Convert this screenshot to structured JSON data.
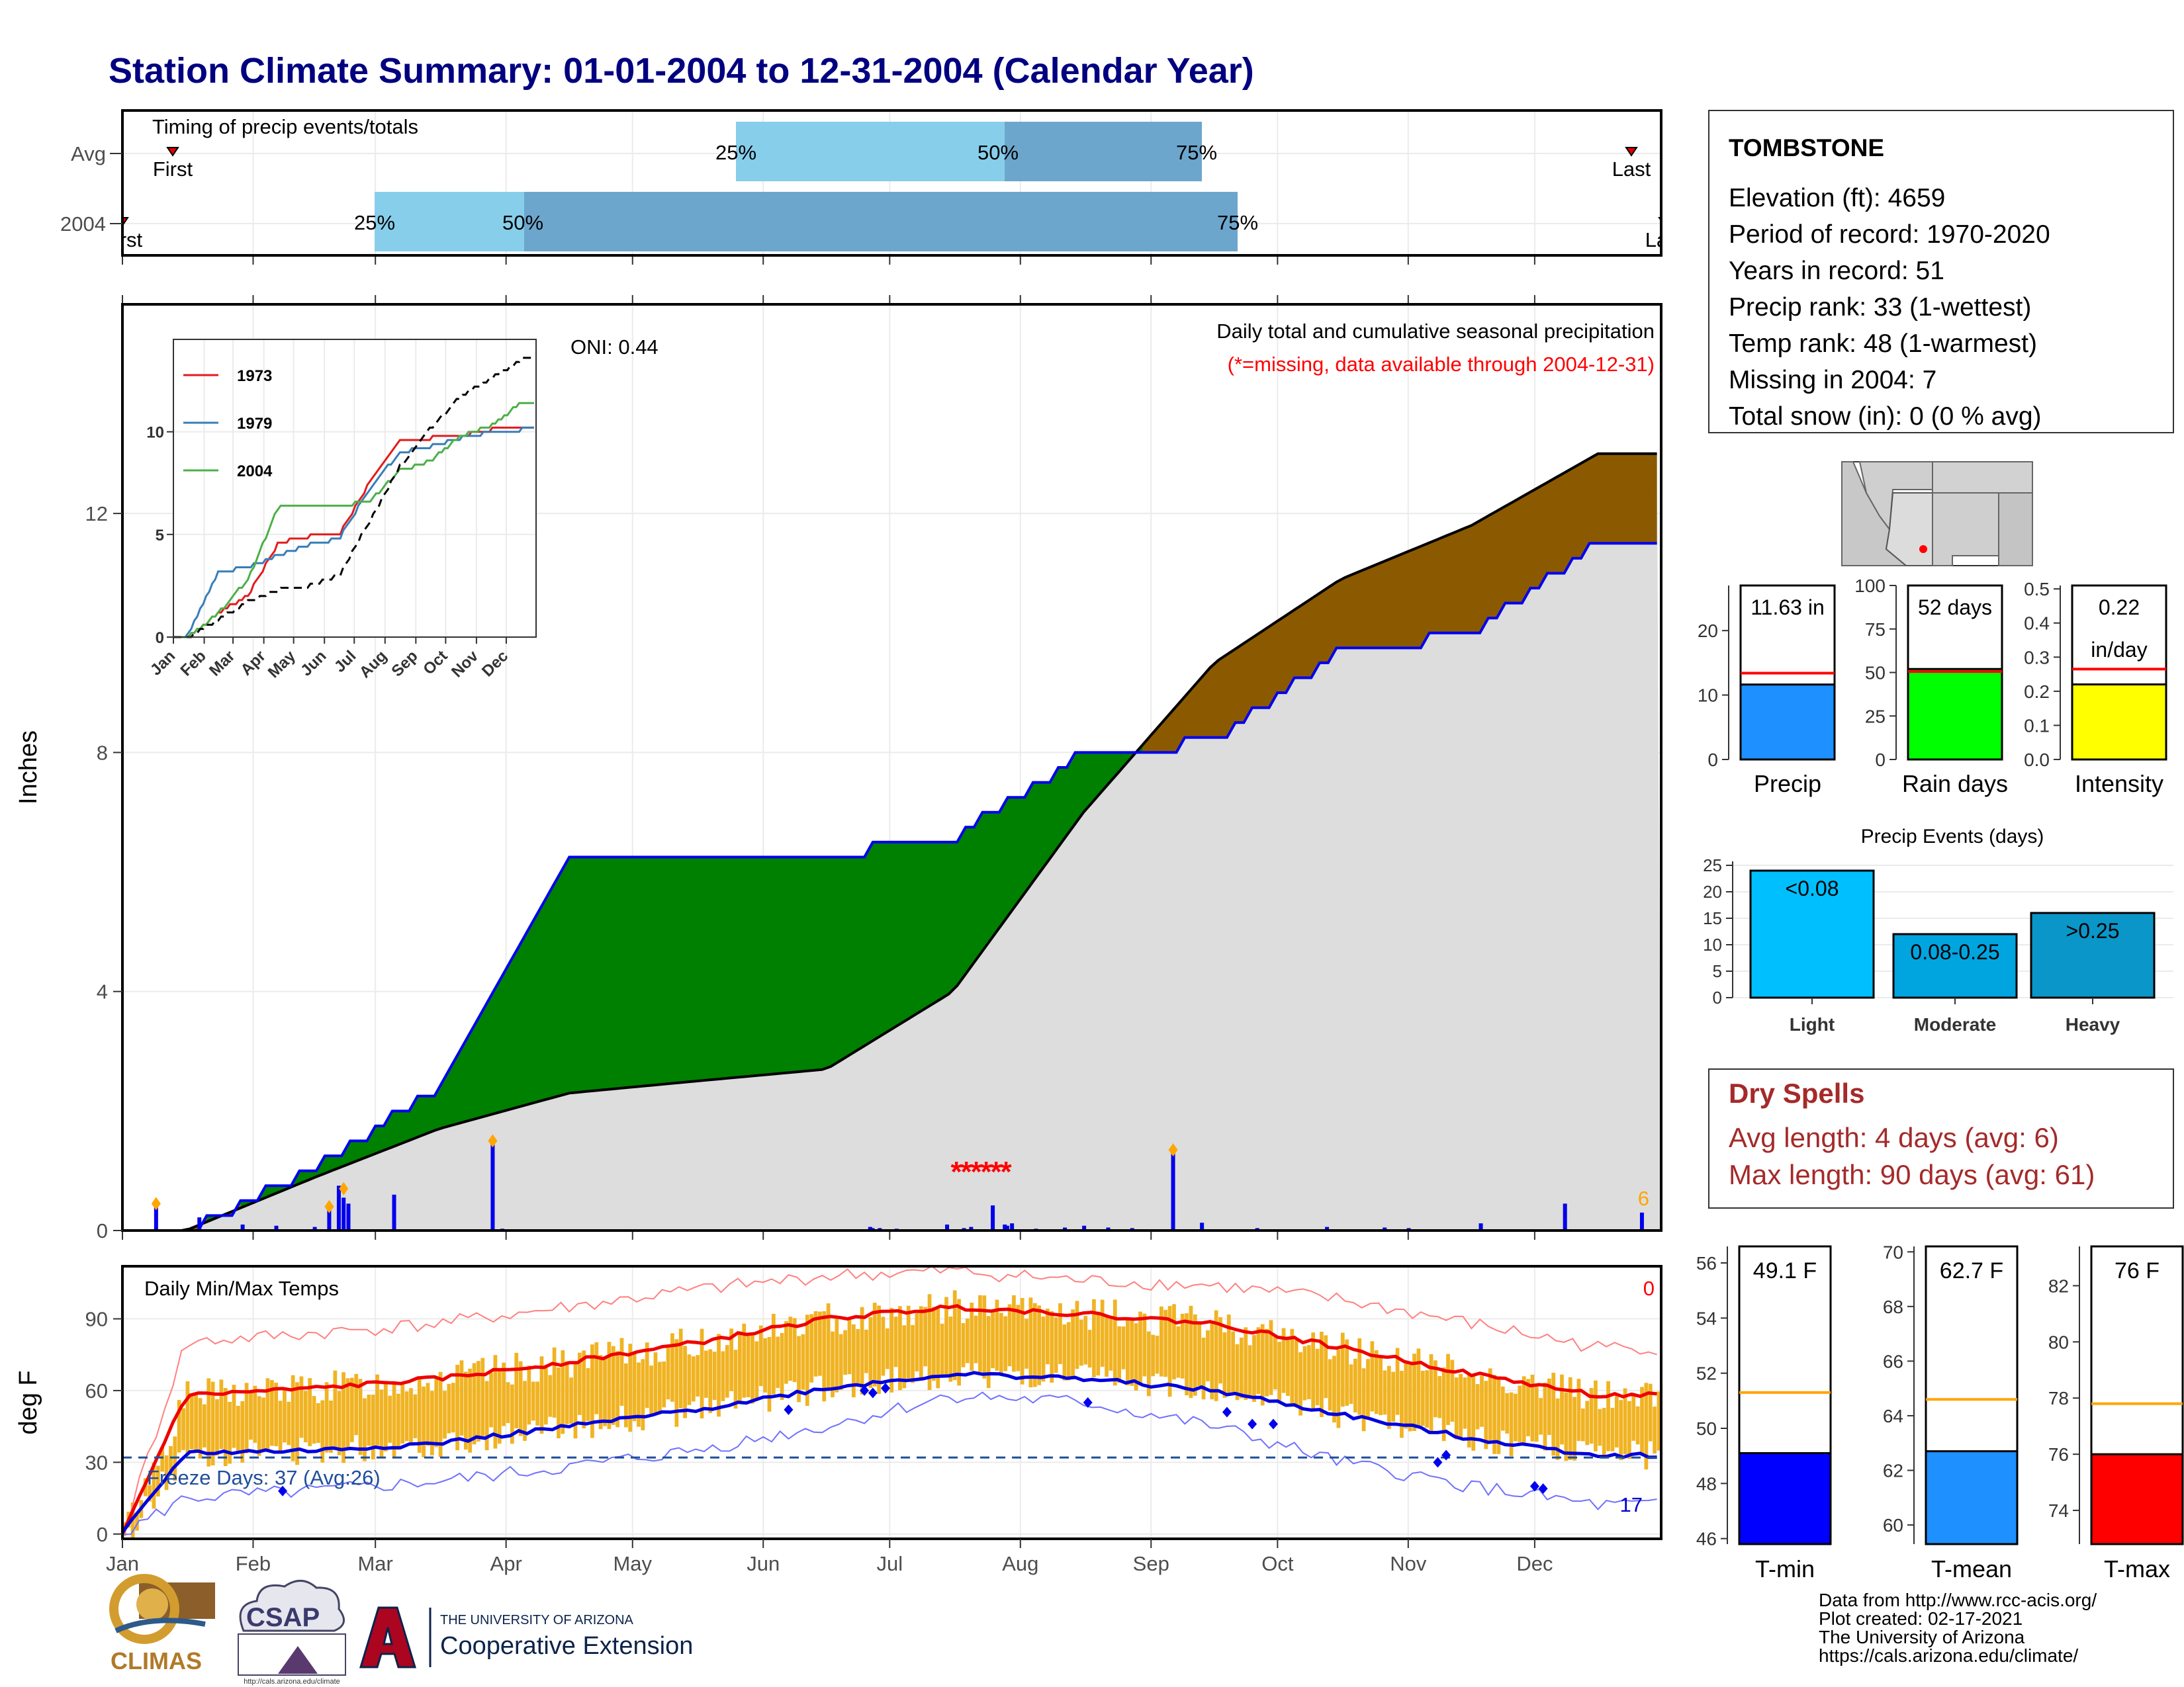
{
  "title": "Station Climate Summary: 01-01-2004 to 12-31-2004 (Calendar Year)",
  "timing": {
    "label": "Timing of precip events/totals",
    "rows": [
      "Avg",
      "2004"
    ],
    "avg": {
      "first": "First",
      "last": "Last",
      "p25": "25%",
      "p50": "50%",
      "p75": "75%"
    },
    "y2004": {
      "first": "First",
      "last": "Last",
      "p25": "25%",
      "p50": "50%",
      "p75": "75%"
    }
  },
  "precip_panel": {
    "ylabel": "Inches",
    "yticks": [
      0,
      4,
      8,
      12
    ],
    "note1": "Daily total and cumulative seasonal precipitation",
    "note2": "(*=missing, data available through 2004-12-31)",
    "oni": "ONI: 0.44",
    "corner_count": "6"
  },
  "inset": {
    "legend": [
      "1973",
      "1979",
      "2004"
    ],
    "yticks": [
      0,
      5,
      10
    ],
    "months": [
      "Jan",
      "Feb",
      "Mar",
      "Apr",
      "May",
      "Jun",
      "Jul",
      "Aug",
      "Sep",
      "Oct",
      "Nov",
      "Dec"
    ]
  },
  "temp_panel": {
    "label": "Daily Min/Max Temps",
    "ylabel": "deg F",
    "yticks": [
      0,
      30,
      60,
      90
    ],
    "freeze": "Freeze Days: 37 (Avg:26)",
    "count_top": "0",
    "count_bottom": "17",
    "months": [
      "Jan",
      "Feb",
      "Mar",
      "Apr",
      "May",
      "Jun",
      "Jul",
      "Aug",
      "Sep",
      "Oct",
      "Nov",
      "Dec"
    ]
  },
  "station": {
    "name": "TOMBSTONE",
    "lines": [
      "Elevation (ft): 4659",
      "Period of record: 1970-2020",
      "Years in record: 51",
      "Precip rank: 33 (1-wettest)",
      "Temp rank: 48 (1-warmest)",
      "Missing in 2004: 7",
      "Total snow (in): 0 (0 % avg)"
    ]
  },
  "summary_bars": [
    {
      "label": "Precip",
      "value": 11.63,
      "avg": 13.4,
      "text": "11.63 in",
      "text2": "",
      "ymax": 27,
      "ticks": [
        0,
        10,
        20
      ],
      "color": "#1e90ff"
    },
    {
      "label": "Rain days",
      "value": 52,
      "avg": 50.5,
      "text": "52 days",
      "text2": "",
      "ymax": 100,
      "ticks": [
        0,
        25,
        50,
        75,
        100
      ],
      "color": "#00ff00"
    },
    {
      "label": "Intensity",
      "value": 0.22,
      "avg": 0.265,
      "text": "0.22",
      "text2": "in/day",
      "ymax": 0.51,
      "ticks": [
        0.0,
        0.1,
        0.2,
        0.3,
        0.4,
        0.5
      ],
      "color": "#ffff00"
    }
  ],
  "precip_events": {
    "title": "Precip Events (days)",
    "categories": [
      "Light",
      "Moderate",
      "Heavy"
    ],
    "values": [
      24,
      12,
      16
    ],
    "bar_labels": [
      "<0.08",
      "0.08-0.25",
      ">0.25"
    ],
    "yticks": [
      0,
      5,
      10,
      15,
      20,
      25
    ],
    "colors": [
      "#00bfff",
      "#00a5e0",
      "#0a96c8"
    ]
  },
  "dry_spells": {
    "title": "Dry Spells",
    "avg_length": "Avg length: 4 days (avg: 6)",
    "max_length": "Max length: 90 days (avg: 61)"
  },
  "temp_bars": [
    {
      "label": "T-min",
      "value": 49.1,
      "avg": 51.3,
      "text": "49.1 F",
      "ymin": 45.8,
      "ymax": 56.6,
      "ticks": [
        46,
        48,
        50,
        52,
        54,
        56
      ],
      "color": "#0000ff"
    },
    {
      "label": "T-mean",
      "value": 62.7,
      "avg": 64.6,
      "text": "62.7 F",
      "ymin": 59.3,
      "ymax": 70.2,
      "ticks": [
        60,
        62,
        64,
        66,
        68,
        70
      ],
      "color": "#1e90ff"
    },
    {
      "label": "T-max",
      "value": 76,
      "avg": 77.8,
      "text": "76 F",
      "ymin": 72.8,
      "ymax": 83.4,
      "ticks": [
        74,
        76,
        78,
        80,
        82
      ],
      "color": "#ff0000"
    }
  ],
  "footer": {
    "lines": [
      "Data from http://www.rcc-acis.org/",
      "Plot created: 02-17-2021",
      "The University of Arizona",
      "https://cals.arizona.edu/climate/"
    ]
  },
  "logos": {
    "climas": "CLIMAS",
    "csap": "CSAP",
    "csap_url": "http://cals.arizona.edu/climate",
    "ua_small": "THE UNIVERSITY OF ARIZONA",
    "ua_large": "Cooperative Extension"
  },
  "chart_data": [
    {
      "type": "area",
      "name": "cumulative precipitation",
      "x": [
        "Jan",
        "Feb",
        "Mar",
        "Apr",
        "May",
        "Jun",
        "Jul",
        "Aug",
        "Sep",
        "Oct",
        "Nov",
        "Dec"
      ],
      "ylabel": "Inches",
      "ylim": [
        0,
        15.5
      ],
      "series": [
        {
          "name": "2004",
          "values": [
            0.1,
            1.2,
            2.5,
            6.4,
            6.4,
            6.4,
            6.7,
            8.1,
            8.3,
            9.8,
            10.1,
            11.6
          ]
        },
        {
          "name": "Avg",
          "values": [
            0.0,
            0.9,
            1.7,
            2.3,
            2.5,
            2.7,
            4.0,
            7.0,
            9.5,
            10.9,
            11.8,
            13.0
          ]
        }
      ]
    },
    {
      "type": "line",
      "name": "cumulative precipitation inset",
      "x": [
        "Jan",
        "Feb",
        "Mar",
        "Apr",
        "May",
        "Jun",
        "Jul",
        "Aug",
        "Sep",
        "Oct",
        "Nov",
        "Dec"
      ],
      "ylim": [
        0,
        14.5
      ],
      "series": [
        {
          "name": "1973",
          "values": [
            0.0,
            1.2,
            2.0,
            4.6,
            4.9,
            5.0,
            7.5,
            9.5,
            9.7,
            9.8,
            10.1,
            10.2
          ]
        },
        {
          "name": "1979",
          "values": [
            0.1,
            3.2,
            3.4,
            4.0,
            4.5,
            4.8,
            7.2,
            9.0,
            9.3,
            9.7,
            10.0,
            10.1
          ]
        },
        {
          "name": "2004",
          "values": [
            0.0,
            1.2,
            2.8,
            6.4,
            6.4,
            6.4,
            6.6,
            8.1,
            8.6,
            9.8,
            10.3,
            11.4
          ]
        },
        {
          "name": "Avg",
          "values": [
            0.0,
            0.9,
            1.7,
            2.3,
            2.5,
            3.0,
            5.6,
            8.3,
            10.2,
            11.7,
            12.6,
            13.5
          ]
        }
      ]
    },
    {
      "type": "line",
      "name": "daily temperatures",
      "x": [
        "Jan",
        "Feb",
        "Mar",
        "Apr",
        "May",
        "Jun",
        "Jul",
        "Aug",
        "Sep",
        "Oct",
        "Nov",
        "Dec"
      ],
      "ylabel": "deg F",
      "ylim": [
        -2,
        112
      ],
      "series": [
        {
          "name": "avg max",
          "values": [
            58,
            61,
            65,
            72,
            80,
            90,
            95,
            92,
            88,
            78,
            67,
            58
          ]
        },
        {
          "name": "avg min",
          "values": [
            34,
            35,
            38,
            45,
            52,
            61,
            67,
            65,
            60,
            50,
            40,
            33
          ]
        },
        {
          "name": "record max",
          "values": [
            80,
            84,
            88,
            95,
            102,
            108,
            110,
            106,
            104,
            98,
            88,
            78
          ]
        },
        {
          "name": "record min",
          "values": [
            15,
            18,
            22,
            28,
            35,
            45,
            58,
            55,
            45,
            30,
            20,
            12
          ]
        }
      ],
      "freeze_line": 32
    },
    {
      "type": "bar",
      "name": "precip events",
      "categories": [
        "Light",
        "Moderate",
        "Heavy"
      ],
      "values": [
        24,
        12,
        16
      ]
    }
  ]
}
